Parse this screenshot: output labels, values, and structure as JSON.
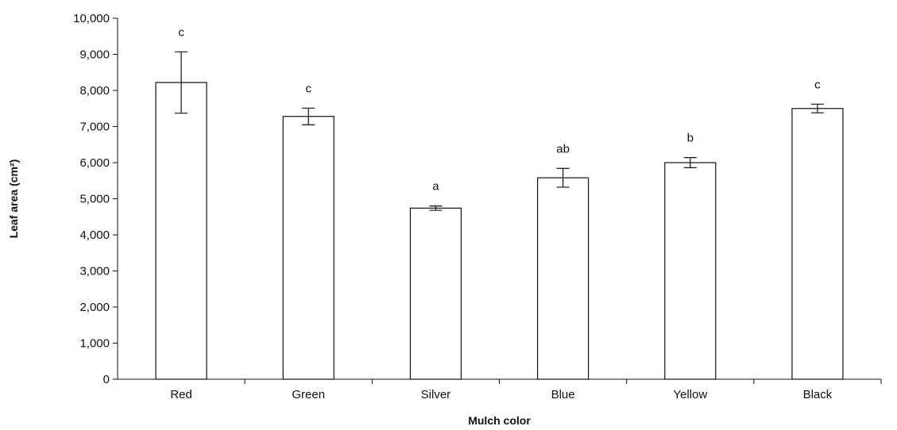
{
  "chart_data": {
    "type": "bar",
    "xlabel": "Mulch color",
    "ylabel": "Leaf area (cm²)",
    "ylim": [
      0,
      10000
    ],
    "yticks": [
      0,
      1000,
      2000,
      3000,
      4000,
      5000,
      6000,
      7000,
      8000,
      9000,
      10000
    ],
    "ytick_labels": [
      "0",
      "1,000",
      "2,000",
      "3,000",
      "4,000",
      "5,000",
      "6,000",
      "7,000",
      "8,000",
      "9,000",
      "10,000"
    ],
    "categories": [
      "Red",
      "Green",
      "Silver",
      "Blue",
      "Yellow",
      "Black"
    ],
    "values": [
      8220,
      7280,
      4740,
      5580,
      6000,
      7500
    ],
    "error": [
      850,
      230,
      60,
      260,
      140,
      120
    ],
    "significance_letters": [
      "c",
      "c",
      "a",
      "ab",
      "b",
      "c"
    ],
    "grid": false,
    "bar_color": "#ffffff",
    "bar_edge_color": "#111111"
  }
}
